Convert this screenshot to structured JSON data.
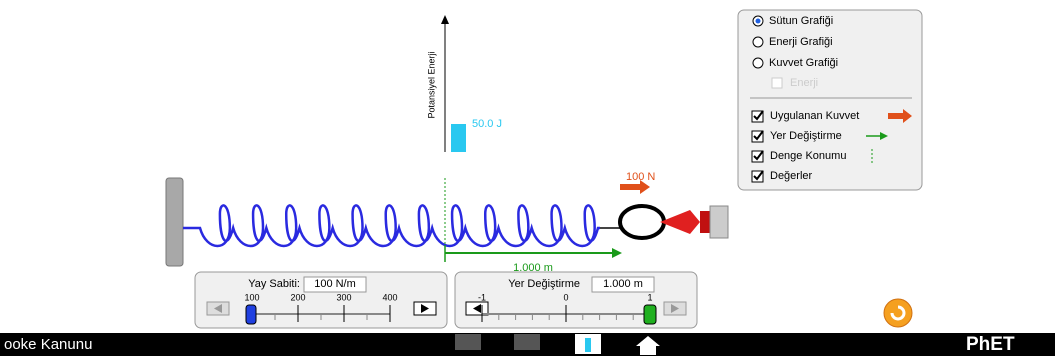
{
  "energy_graph": {
    "axis_label": "Potansiyel Enerji",
    "value_label": "50.0 J"
  },
  "applied_force_label": "100 N",
  "displacement_label": "1.000 m",
  "spring_constant_panel": {
    "title": "Yay Sabiti:",
    "readout": "100 N/m",
    "ticks": [
      "100",
      "200",
      "300",
      "400"
    ]
  },
  "displacement_panel": {
    "title": "Yer Değiştirme",
    "readout": "1.000 m",
    "ticks": [
      "-1",
      "0",
      "1"
    ]
  },
  "options": {
    "radios": [
      "Sütun Grafiği",
      "Enerji Grafiği",
      "Kuvvet Grafiği"
    ],
    "sub_option": "Enerji",
    "checkboxes": [
      "Uygulanan Kuvvet",
      "Yer Değiştirme",
      "Denge Konumu",
      "Değerler"
    ]
  },
  "footer": {
    "title": "ooke Kanunu",
    "logo": "PhET"
  }
}
